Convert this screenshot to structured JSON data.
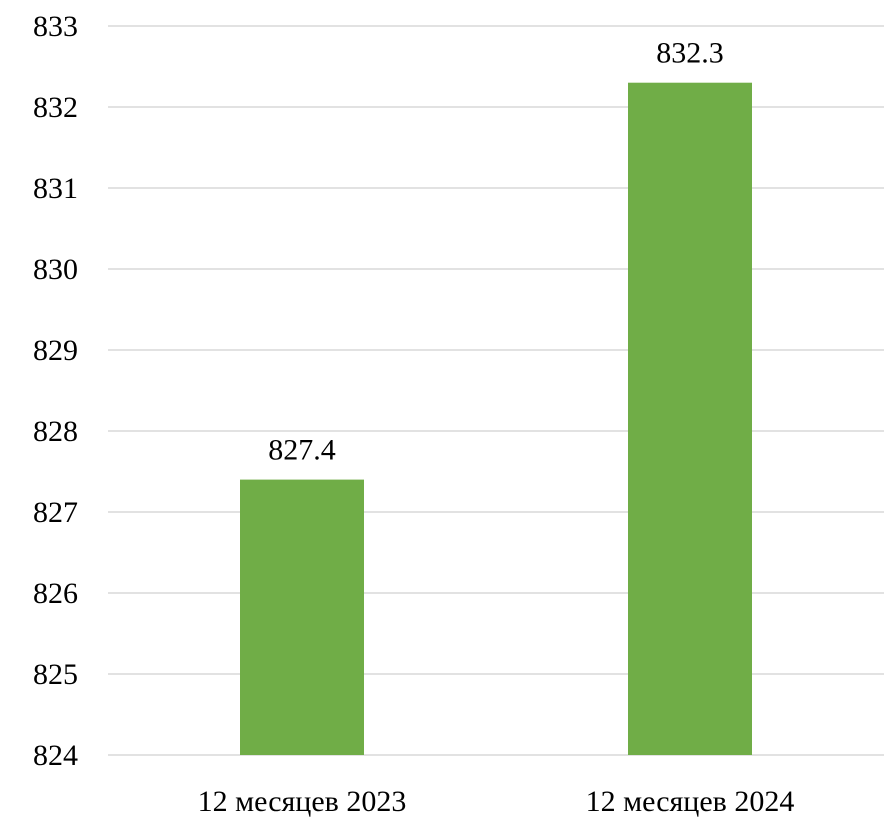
{
  "chart_data": {
    "type": "bar",
    "categories": [
      "12 месяцев 2023",
      "12 месяцев 2024"
    ],
    "values": [
      827.4,
      832.3
    ],
    "value_labels": [
      "827.4",
      "832.3"
    ],
    "ylim": [
      824,
      833
    ],
    "yticks": [
      824,
      825,
      826,
      827,
      828,
      829,
      830,
      831,
      832,
      833
    ],
    "ytick_labels": [
      "824",
      "825",
      "826",
      "827",
      "828",
      "829",
      "830",
      "831",
      "832",
      "833"
    ],
    "grid": true,
    "bar_color": "#70ad47",
    "grid_color": "#d9d9d9",
    "title": "",
    "xlabel": "",
    "ylabel": ""
  }
}
